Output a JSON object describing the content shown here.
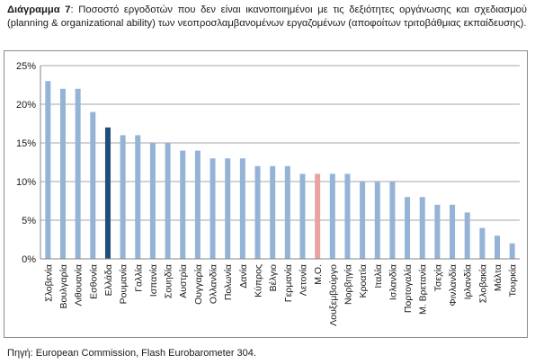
{
  "caption": {
    "label": "Διάγραμμα 7",
    "text": ": Ποσοστό εργοδοτών που δεν είναι ικανοποιημένοι με τις δεξιότητες οργάνωσης και σχεδιασμού (planning & organizational ability) των νεοπροσλαμβανομένων εργαζομένων (αποφοίτων τριτοβάθμιας εκπαίδευσης)."
  },
  "source": "Πηγή: European Commission, Flash Eurobarometer 304.",
  "colors": {
    "default_bar": "#95b3d7",
    "highlight_greece": "#1f4e79",
    "highlight_average": "#e6a3a0",
    "grid": "#a6a6a6"
  },
  "chart_data": {
    "type": "bar",
    "title": "",
    "xlabel": "",
    "ylabel": "",
    "ylim": [
      0,
      25
    ],
    "yticks": [
      "0%",
      "5%",
      "10%",
      "15%",
      "20%",
      "25%"
    ],
    "grid": true,
    "legend": "none",
    "highlight": {
      "Ελλάδα": "highlight_greece",
      "Μ.Ο.": "highlight_average"
    },
    "categories": [
      "Σλοβενία",
      "Βουλγαρία",
      "Λιθουανία",
      "Εσθονία",
      "Ελλάδα",
      "Ρουμανία",
      "Γαλλία",
      "Ισπανία",
      "Σουηδία",
      "Αυστρία",
      "Ουγγαρία",
      "Ολλανδία",
      "Πολωνία",
      "Δανία",
      "Κύπρος",
      "Βέλγιο",
      "Γερμανία",
      "Λετονία",
      "Μ.Ο.",
      "Λουξεμβούργο",
      "Νορβηγία",
      "Κροατία",
      "Ιταλία",
      "Ισλανδία",
      "Πορτογαλία",
      "Μ. Βρετανία",
      "Τσεχία",
      "Φινλανδία",
      "Ιρλανδία",
      "Σλοβακία",
      "Μάλτα",
      "Τουρκία"
    ],
    "values": [
      23,
      22,
      22,
      19,
      17,
      16,
      16,
      15,
      15,
      14,
      14,
      13,
      13,
      13,
      12,
      12,
      12,
      11,
      11,
      11,
      11,
      10,
      10,
      10,
      8,
      8,
      7,
      7,
      6,
      4,
      3,
      2
    ]
  }
}
